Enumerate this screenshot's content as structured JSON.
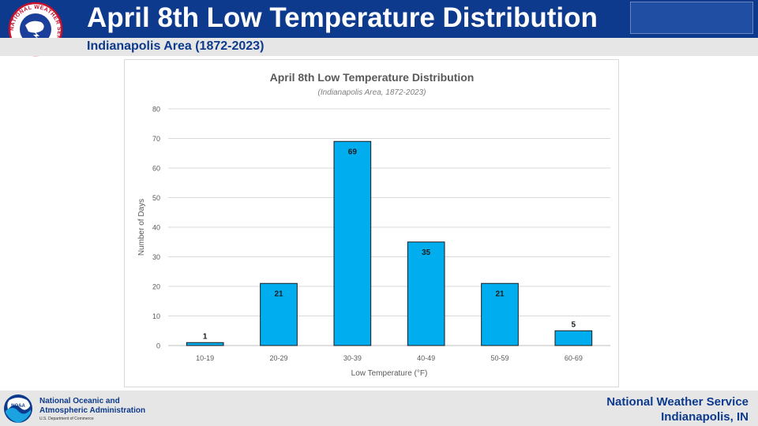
{
  "header": {
    "title": "April 8th Low Temperature Distribution",
    "subtitle": "Indianapolis Area (1872-2023)",
    "logo_text": "NATIONAL WEATHER SERVICE"
  },
  "chart_data": {
    "type": "bar",
    "title": "April 8th Low Temperature Distribution",
    "subtitle": "(Indianapolis Area, 1872-2023)",
    "xlabel": "Low Temperature (°F)",
    "ylabel": "Number of Days",
    "categories": [
      "10-19",
      "20-29",
      "30-39",
      "40-49",
      "50-59",
      "60-69"
    ],
    "values": [
      1,
      21,
      69,
      35,
      21,
      5
    ],
    "ylim": [
      0,
      80
    ],
    "yticks": [
      0,
      10,
      20,
      30,
      40,
      50,
      60,
      70,
      80
    ],
    "grid": true,
    "legend": false,
    "bar_color": "#00aeef"
  },
  "footer": {
    "noaa_line1": "National Oceanic and",
    "noaa_line2": "Atmospheric Administration",
    "noaa_dept": "U.S. Department of Commerce",
    "noaa_logo_text": "NOAA",
    "office_line1": "National Weather Service",
    "office_line2": "Indianapolis, IN"
  },
  "colors": {
    "header_blue": "#0d3a8c",
    "gray_bar": "#e6e6e6",
    "bar_fill": "#00aeef"
  }
}
